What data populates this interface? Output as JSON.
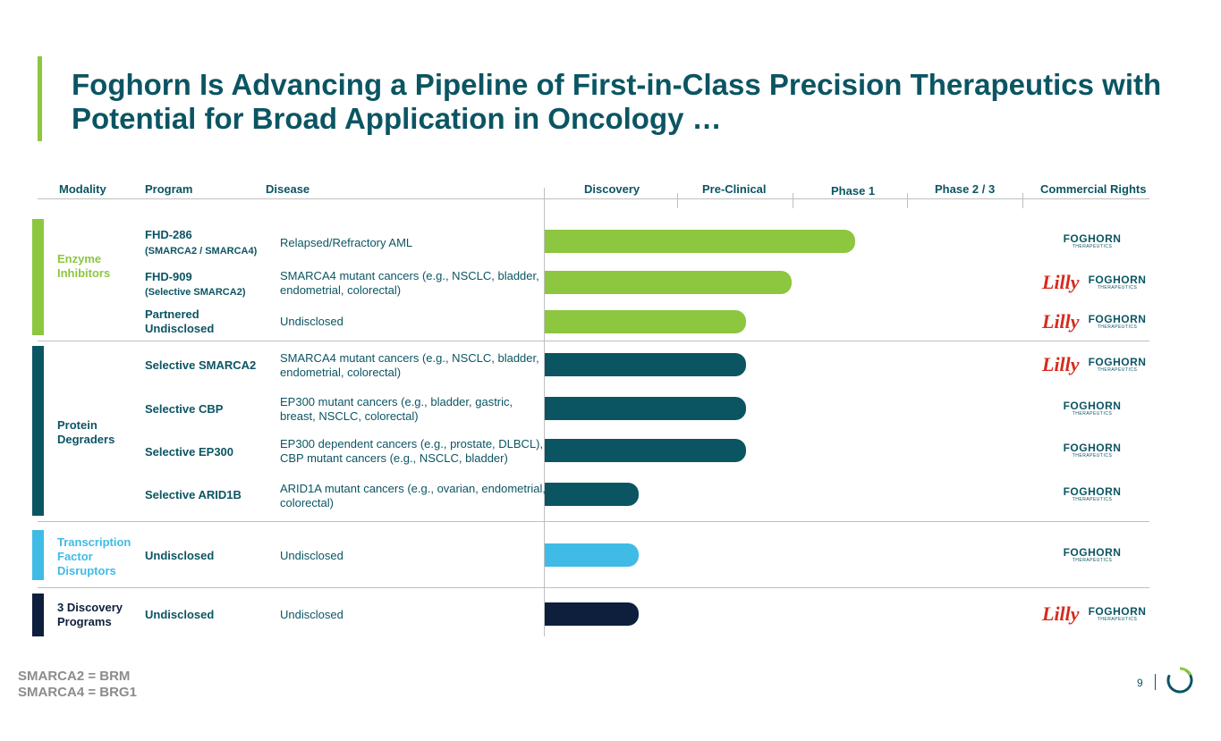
{
  "title": "Foghorn Is Advancing a Pipeline of First-in-Class Precision Therapeutics with Potential for Broad Application in Oncology …",
  "headers": {
    "modality": "Modality",
    "program": "Program",
    "disease": "Disease",
    "discovery": "Discovery",
    "preclinical": "Pre-Clinical",
    "phase1": "Phase 1",
    "phase23": "Phase 2 / 3",
    "rights": "Commercial Rights"
  },
  "modalities": [
    {
      "label": "Enzyme Inhibitors",
      "color": "#8dc63f"
    },
    {
      "label": "Protein Degraders",
      "color": "#0b5563"
    },
    {
      "label": "Transcription Factor Disruptors",
      "color": "#3fbbe6"
    },
    {
      "label": "3 Discovery Programs",
      "color": "#0d1f3c"
    }
  ],
  "programs": [
    {
      "name": "FHD-286",
      "sub": "(SMARCA2 / SMARCA4)",
      "disease": "Relapsed/Refractory AML"
    },
    {
      "name": "FHD-909",
      "sub": "(Selective SMARCA2)",
      "disease": "SMARCA4 mutant cancers (e.g., NSCLC, bladder, endometrial, colorectal)"
    },
    {
      "name": "Partnered Undisclosed",
      "sub": "",
      "disease": "Undisclosed"
    },
    {
      "name": "Selective SMARCA2",
      "sub": "",
      "disease": "SMARCA4 mutant cancers (e.g., NSCLC, bladder, endometrial, colorectal)"
    },
    {
      "name": "Selective CBP",
      "sub": "",
      "disease": "EP300 mutant cancers (e.g., bladder, gastric, breast, NSCLC, colorectal)"
    },
    {
      "name": "Selective EP300",
      "sub": "",
      "disease": "EP300 dependent cancers (e.g., prostate, DLBCL), CBP mutant cancers (e.g., NSCLC, bladder)"
    },
    {
      "name": "Selective ARID1B",
      "sub": "",
      "disease": "ARID1A mutant cancers (e.g., ovarian, endometrial, colorectal)"
    },
    {
      "name": "Undisclosed",
      "sub": "",
      "disease": "Undisclosed"
    },
    {
      "name": "Undisclosed",
      "sub": "",
      "disease": "Undisclosed"
    }
  ],
  "logos": {
    "foghorn_word": "FOGHORN",
    "foghorn_sub": "THERAPEUTICS",
    "lilly_word": "Lilly"
  },
  "chart_data": {
    "type": "bar",
    "orientation": "horizontal",
    "stages": [
      "Discovery",
      "Pre-Clinical",
      "Phase 1",
      "Phase 2 / 3"
    ],
    "xlim": [
      0,
      5
    ],
    "categories": [
      "FHD-286",
      "FHD-909",
      "Partnered Undisclosed",
      "Selective SMARCA2",
      "Selective CBP",
      "Selective EP300",
      "Selective ARID1B",
      "Undisclosed",
      "Undisclosed"
    ],
    "values": [
      2.7,
      2.15,
      1.75,
      1.75,
      1.75,
      1.75,
      0.82,
      0.82,
      0.82
    ],
    "colors": [
      "#8dc63f",
      "#8dc63f",
      "#8dc63f",
      "#0b5563",
      "#0b5563",
      "#0b5563",
      "#0b5563",
      "#3fbbe6",
      "#0d1f3c"
    ],
    "rights": [
      [
        "Foghorn"
      ],
      [
        "Lilly",
        "Foghorn"
      ],
      [
        "Lilly",
        "Foghorn"
      ],
      [
        "Lilly",
        "Foghorn"
      ],
      [
        "Foghorn"
      ],
      [
        "Foghorn"
      ],
      [
        "Foghorn"
      ],
      [
        "Foghorn"
      ],
      [
        "Lilly",
        "Foghorn"
      ]
    ]
  },
  "footnote": {
    "line1": "SMARCA2 = BRM",
    "line2": "SMARCA4 = BRG1"
  },
  "page_number": "9"
}
